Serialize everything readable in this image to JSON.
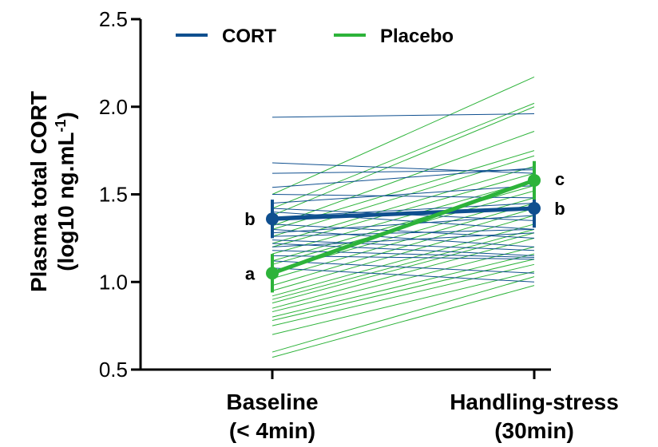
{
  "chart_data": {
    "type": "line",
    "categories": [
      "Baseline\n(< 4min)",
      "Handling-stress\n(30min)"
    ],
    "ylabel": "Plasma total CORT\n(log10 ng.mL-1)",
    "ylim": [
      0.5,
      2.5
    ],
    "yticks": [
      0.5,
      1.0,
      1.5,
      2.0,
      2.5
    ],
    "ytick_labels": [
      "0.5",
      "1.0",
      "1.5",
      "2.0",
      "2.5"
    ],
    "legend": "top-left",
    "series": [
      {
        "name": "CORT",
        "color": "#0f4f8f",
        "mean": [
          1.36,
          1.42
        ],
        "error": [
          0.11,
          0.11
        ],
        "labels": [
          "b",
          "b"
        ],
        "individuals": [
          [
            1.94,
            1.96
          ],
          [
            1.68,
            1.62
          ],
          [
            1.62,
            1.64
          ],
          [
            1.54,
            1.65
          ],
          [
            1.5,
            1.48
          ],
          [
            1.45,
            1.55
          ],
          [
            1.42,
            1.35
          ],
          [
            1.4,
            1.3
          ],
          [
            1.37,
            1.45
          ],
          [
            1.33,
            1.25
          ],
          [
            1.3,
            1.2
          ],
          [
            1.28,
            1.38
          ],
          [
            1.26,
            1.3
          ],
          [
            1.24,
            1.18
          ],
          [
            1.22,
            1.15
          ],
          [
            1.2,
            1.28
          ],
          [
            1.18,
            1.14
          ],
          [
            1.15,
            1.13
          ],
          [
            1.12,
            1.05
          ],
          [
            1.08,
            1.0
          ]
        ]
      },
      {
        "name": "Placebo",
        "color": "#2db33a",
        "mean": [
          1.05,
          1.58
        ],
        "error": [
          0.11,
          0.11
        ],
        "labels": [
          "a",
          "c"
        ],
        "individuals": [
          [
            1.5,
            2.17
          ],
          [
            1.42,
            2.02
          ],
          [
            1.38,
            2.0
          ],
          [
            1.32,
            1.86
          ],
          [
            1.3,
            1.75
          ],
          [
            1.26,
            1.72
          ],
          [
            1.22,
            1.66
          ],
          [
            1.2,
            1.62
          ],
          [
            1.16,
            1.58
          ],
          [
            1.12,
            1.55
          ],
          [
            1.1,
            1.52
          ],
          [
            1.06,
            1.48
          ],
          [
            1.02,
            1.45
          ],
          [
            0.98,
            1.42
          ],
          [
            0.95,
            1.38
          ],
          [
            0.92,
            1.33
          ],
          [
            0.9,
            1.3
          ],
          [
            0.88,
            1.28
          ],
          [
            0.85,
            1.25
          ],
          [
            0.83,
            1.2
          ],
          [
            0.8,
            1.16
          ],
          [
            0.78,
            1.13
          ],
          [
            0.75,
            1.1
          ],
          [
            0.7,
            1.06
          ],
          [
            0.6,
            1.03
          ],
          [
            0.57,
            0.98
          ]
        ]
      }
    ]
  }
}
